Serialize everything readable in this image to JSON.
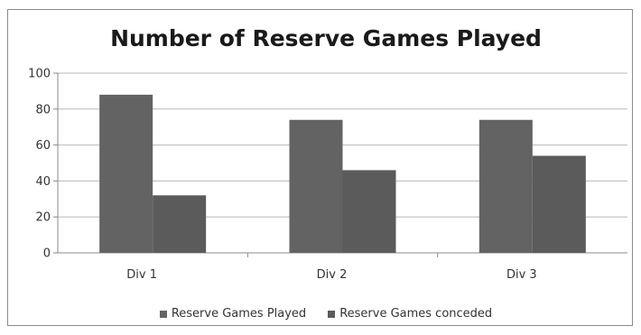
{
  "chart_data": {
    "type": "bar",
    "title": "Number of Reserve Games Played",
    "xlabel": "",
    "ylabel": "",
    "categories": [
      "Div 1",
      "Div 2",
      "Div 3"
    ],
    "series": [
      {
        "name": "Reserve Games Played",
        "values": [
          88,
          74,
          74
        ],
        "color": "#636363"
      },
      {
        "name": "Reserve Games conceded",
        "values": [
          32,
          46,
          54
        ],
        "color": "#5b5b5b"
      }
    ],
    "ylim": [
      0,
      100
    ],
    "yticks": [
      0,
      20,
      40,
      60,
      80,
      100
    ],
    "grid": true,
    "legend_position": "bottom"
  }
}
